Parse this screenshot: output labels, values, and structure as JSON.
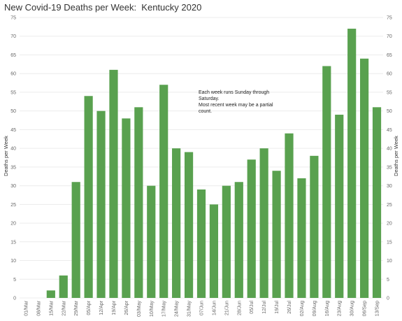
{
  "title": "New Covid-19 Deaths per Week:  Kentucky 2020",
  "chart_data": {
    "type": "bar",
    "title": "New Covid-19 Deaths per Week:  Kentucky 2020",
    "xlabel": "",
    "ylabel": "Deaths per Week",
    "ylim": [
      0,
      75
    ],
    "yticks": [
      0,
      5,
      10,
      15,
      20,
      25,
      30,
      35,
      40,
      45,
      50,
      55,
      60,
      65,
      70,
      75
    ],
    "categories": [
      "01/Mar",
      "08/Mar",
      "15/Mar",
      "22/Mar",
      "29/Mar",
      "05/Apr",
      "12/Apr",
      "19/Apr",
      "26/Apr",
      "03/May",
      "10/May",
      "17/May",
      "24/May",
      "31/May",
      "07/Jun",
      "14/Jun",
      "21/Jun",
      "28/Jun",
      "05/Jul",
      "12/Jul",
      "19/Jul",
      "26/Jul",
      "02/Aug",
      "09/Aug",
      "16/Aug",
      "23/Aug",
      "30/Aug",
      "06/Sep",
      "13/Sep"
    ],
    "values": [
      0,
      0,
      2,
      6,
      31,
      54,
      50,
      61,
      48,
      51,
      30,
      57,
      40,
      39,
      29,
      25,
      30,
      31,
      37,
      40,
      34,
      44,
      32,
      38,
      62,
      49,
      72,
      64,
      51
    ],
    "bar_color": "#59a14f",
    "grid": true,
    "annotation": [
      "Each week runs Sunday through",
      "Saturday.",
      "Most recent week may be a partial",
      "count."
    ]
  }
}
